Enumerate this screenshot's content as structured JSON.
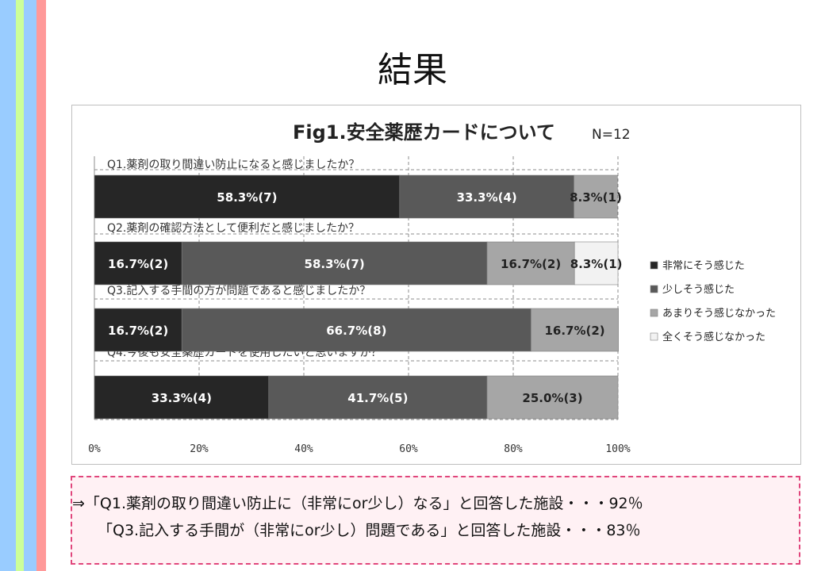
{
  "slide": {
    "title": "結果",
    "stripe_colors": [
      "#99ccff",
      "#ccff99",
      "#99ccff",
      "#ff9999"
    ]
  },
  "chart_data": {
    "type": "bar",
    "orientation": "horizontal",
    "stacked": true,
    "title": "Fig1.安全薬歴カードについて",
    "subtitle": "N=12",
    "categories": [
      "Q1.薬剤の取り間違い防止になると感じましたか？",
      "Q2.薬剤の確認方法として便利だと感じましたか？",
      "Q3.記入する手間の方が問題であると感じましたか？",
      "Q4.今後も安全薬歴カードを使用したいと思いますか？"
    ],
    "series": [
      {
        "name": "非常にそう感じた",
        "color": "#262626",
        "values": [
          58.3,
          16.7,
          16.7,
          33.3
        ],
        "labels": [
          "58.3%(7)",
          "16.7%(2)",
          "16.7%(2)",
          "33.3%(4)"
        ]
      },
      {
        "name": "少しそう感じた",
        "color": "#595959",
        "values": [
          33.3,
          58.3,
          66.7,
          41.7
        ],
        "labels": [
          "33.3%(4)",
          "58.3%(7)",
          "66.7%(8)",
          "41.7%(5)"
        ]
      },
      {
        "name": "あまりそう感じなかった",
        "color": "#a6a6a6",
        "values": [
          8.3,
          16.7,
          16.7,
          25.0
        ],
        "labels": [
          "8.3%(1)",
          "16.7%(2)",
          "16.7%(2)",
          "25.0%(3)"
        ]
      },
      {
        "name": "全くそう感じなかった",
        "color": "#f2f2f2",
        "values": [
          0,
          8.3,
          0,
          0
        ],
        "labels": [
          "",
          "8.3%(1)",
          "",
          ""
        ]
      }
    ],
    "xlim": [
      0,
      100
    ],
    "xticks": [
      "0%",
      "20%",
      "40%",
      "60%",
      "80%",
      "100%"
    ],
    "grid": "vertical dashed",
    "legend": "right"
  },
  "conclusion": {
    "line1": "⇒「Q1.薬剤の取り間違い防止に（非常にor少し）なる」と回答した施設・・・92％",
    "line2": "「Q3.記入する手間が（非常にor少し）問題である」と回答した施設・・・83％"
  }
}
